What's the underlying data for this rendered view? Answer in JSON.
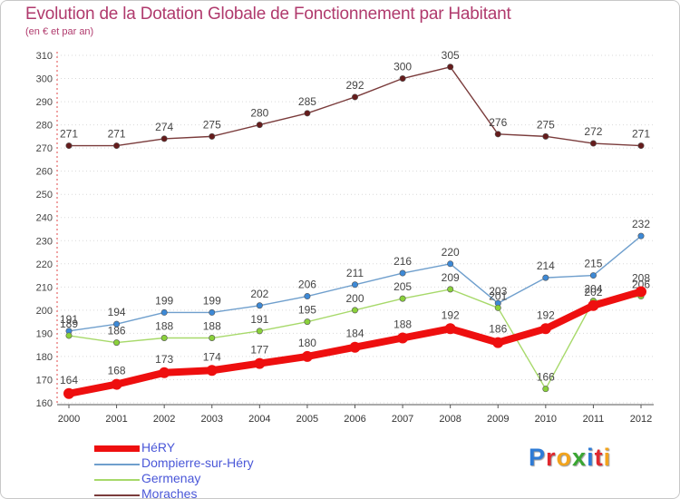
{
  "header": {
    "title": "Evolution de la Dotation Globale de Fonctionnement par Habitant",
    "subtitle": "(en € et par an)"
  },
  "brand": {
    "letters": [
      "P",
      "r",
      "o",
      "x",
      "i",
      "t",
      "i"
    ],
    "letter_colors": [
      "#2e7bd6",
      "#e0282e",
      "#f2a41d",
      "#3aa632",
      "#2e7bd6",
      "#e0282e",
      "#f2a41d"
    ]
  },
  "chart_data": {
    "type": "line",
    "title": "Evolution de la Dotation Globale de Fonctionnement par Habitant",
    "subtitle": "(en € et par an)",
    "xlabel": "",
    "ylabel": "",
    "x": [
      "2000",
      "2001",
      "2002",
      "2003",
      "2004",
      "2005",
      "2006",
      "2007",
      "2008",
      "2009",
      "2010",
      "2011",
      "2012"
    ],
    "ylim": [
      160,
      310
    ],
    "yticks": [
      160,
      170,
      180,
      190,
      200,
      210,
      220,
      230,
      240,
      250,
      260,
      270,
      280,
      290,
      300,
      310
    ],
    "grid": "horizontal dotted",
    "legend": "bottom-left",
    "series": [
      {
        "name": "HéRY",
        "color": "#ee0f0f",
        "marker_color": "#ee0f0f",
        "emphasis": "thick",
        "values": [
          164,
          168,
          173,
          174,
          177,
          180,
          184,
          188,
          192,
          186,
          192,
          202,
          208
        ],
        "labels": [
          "164",
          "168",
          "173",
          "174",
          "177",
          "180",
          "184",
          "188",
          "192",
          "186",
          "192",
          "202",
          "208"
        ]
      },
      {
        "name": "Dompierre-sur-Héry",
        "color": "#6f9fcd",
        "marker_color": "#3d89d6",
        "emphasis": "normal",
        "values": [
          191,
          194,
          199,
          199,
          202,
          206,
          211,
          216,
          220,
          203,
          214,
          215,
          232
        ],
        "labels": [
          "191",
          "194",
          "199",
          "199",
          "202",
          "206",
          "211",
          "216",
          "220",
          "203",
          "214",
          "215",
          "232"
        ]
      },
      {
        "name": "Germenay",
        "color": "#a7d96a",
        "marker_color": "#8ad13a",
        "emphasis": "normal",
        "values": [
          189,
          186,
          188,
          188,
          191,
          195,
          200,
          205,
          209,
          201,
          166,
          204,
          206
        ],
        "labels": [
          "189",
          "186",
          "188",
          "188",
          "191",
          "195",
          "200",
          "205",
          "209",
          "201",
          "166",
          "204",
          "206"
        ]
      },
      {
        "name": "Moraches",
        "color": "#7a3b3b",
        "marker_color": "#651c1c",
        "emphasis": "normal",
        "values": [
          271,
          271,
          274,
          275,
          280,
          285,
          292,
          300,
          305,
          276,
          275,
          272,
          271
        ],
        "labels": [
          "271",
          "271",
          "274",
          "275",
          "280",
          "285",
          "292",
          "300",
          "305",
          "276",
          "275",
          "272",
          "271"
        ]
      }
    ]
  }
}
